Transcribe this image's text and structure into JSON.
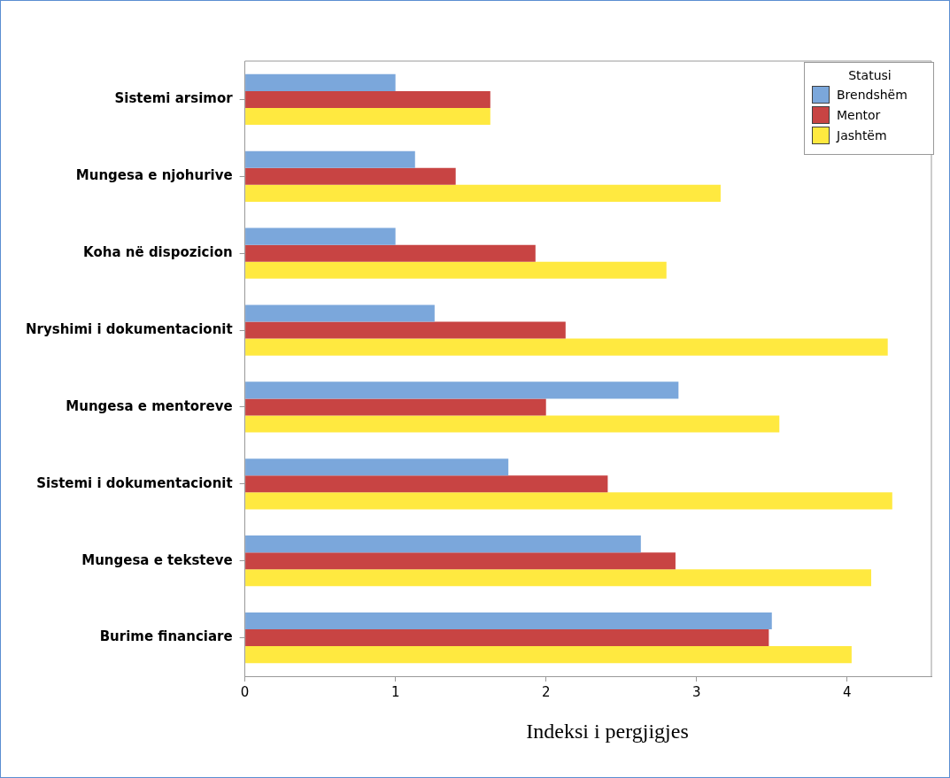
{
  "chart_data": {
    "type": "bar",
    "orientation": "horizontal",
    "xlabel": "Indeksi i pergjigjes",
    "legend_title": "Statusi",
    "legend": "top right",
    "grid": false,
    "categories": [
      "Sistemi arsimor",
      "Mungesa e njohurive",
      "Koha në dispozicion",
      "Nryshimi i dokumentacionit",
      "Mungesa e mentoreve",
      "Sistemi i dokumentacionit",
      "Mungesa e teksteve",
      "Burime financiare"
    ],
    "series": [
      {
        "name": "Brendshëm",
        "color": "#7ba7db",
        "values": [
          1.0,
          1.13,
          1.0,
          1.26,
          2.88,
          1.75,
          2.63,
          3.5
        ]
      },
      {
        "name": "Mentor",
        "color": "#c84443",
        "values": [
          1.63,
          1.4,
          1.93,
          2.13,
          2.0,
          2.41,
          2.86,
          3.48
        ]
      },
      {
        "name": "Jashtëm",
        "color": "#ffe940",
        "values": [
          1.63,
          3.16,
          2.8,
          4.27,
          3.55,
          4.3,
          4.16,
          4.03
        ]
      }
    ],
    "xlim": [
      0,
      4.56
    ],
    "xticks": [
      0,
      1,
      2,
      3,
      4
    ]
  }
}
